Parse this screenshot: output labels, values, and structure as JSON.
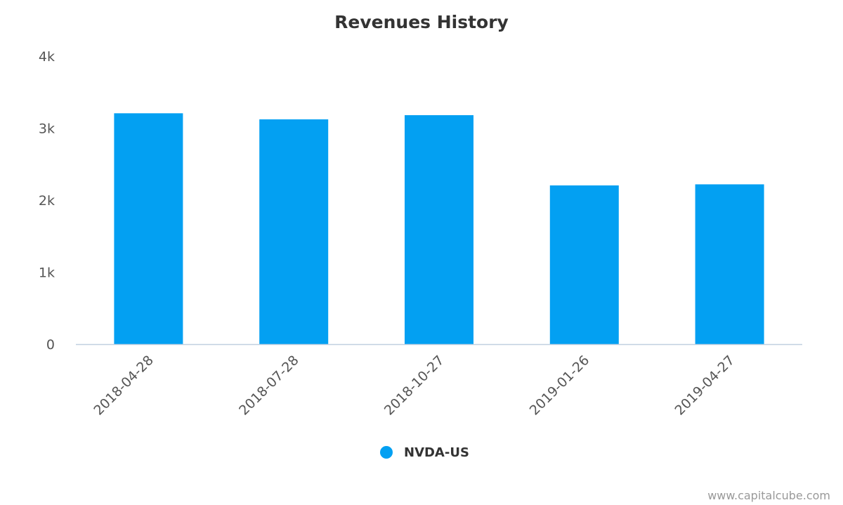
{
  "chart_data": {
    "type": "bar",
    "title": "Revenues History",
    "categories": [
      "2018-04-28",
      "2018-07-28",
      "2018-10-27",
      "2019-01-26",
      "2019-04-27"
    ],
    "series": [
      {
        "name": "NVDA-US",
        "color": "#03a0f2",
        "values": [
          3207,
          3123,
          3181,
          2205,
          2220
        ]
      }
    ],
    "ylim": [
      0,
      4000
    ],
    "yticks": [
      {
        "value": 0,
        "label": "0"
      },
      {
        "value": 1000,
        "label": "1k"
      },
      {
        "value": 2000,
        "label": "2k"
      },
      {
        "value": 3000,
        "label": "3k"
      },
      {
        "value": 4000,
        "label": "4k"
      }
    ],
    "grid": false,
    "legend_position": "bottom-center"
  },
  "credit": "www.capitalcube.com"
}
